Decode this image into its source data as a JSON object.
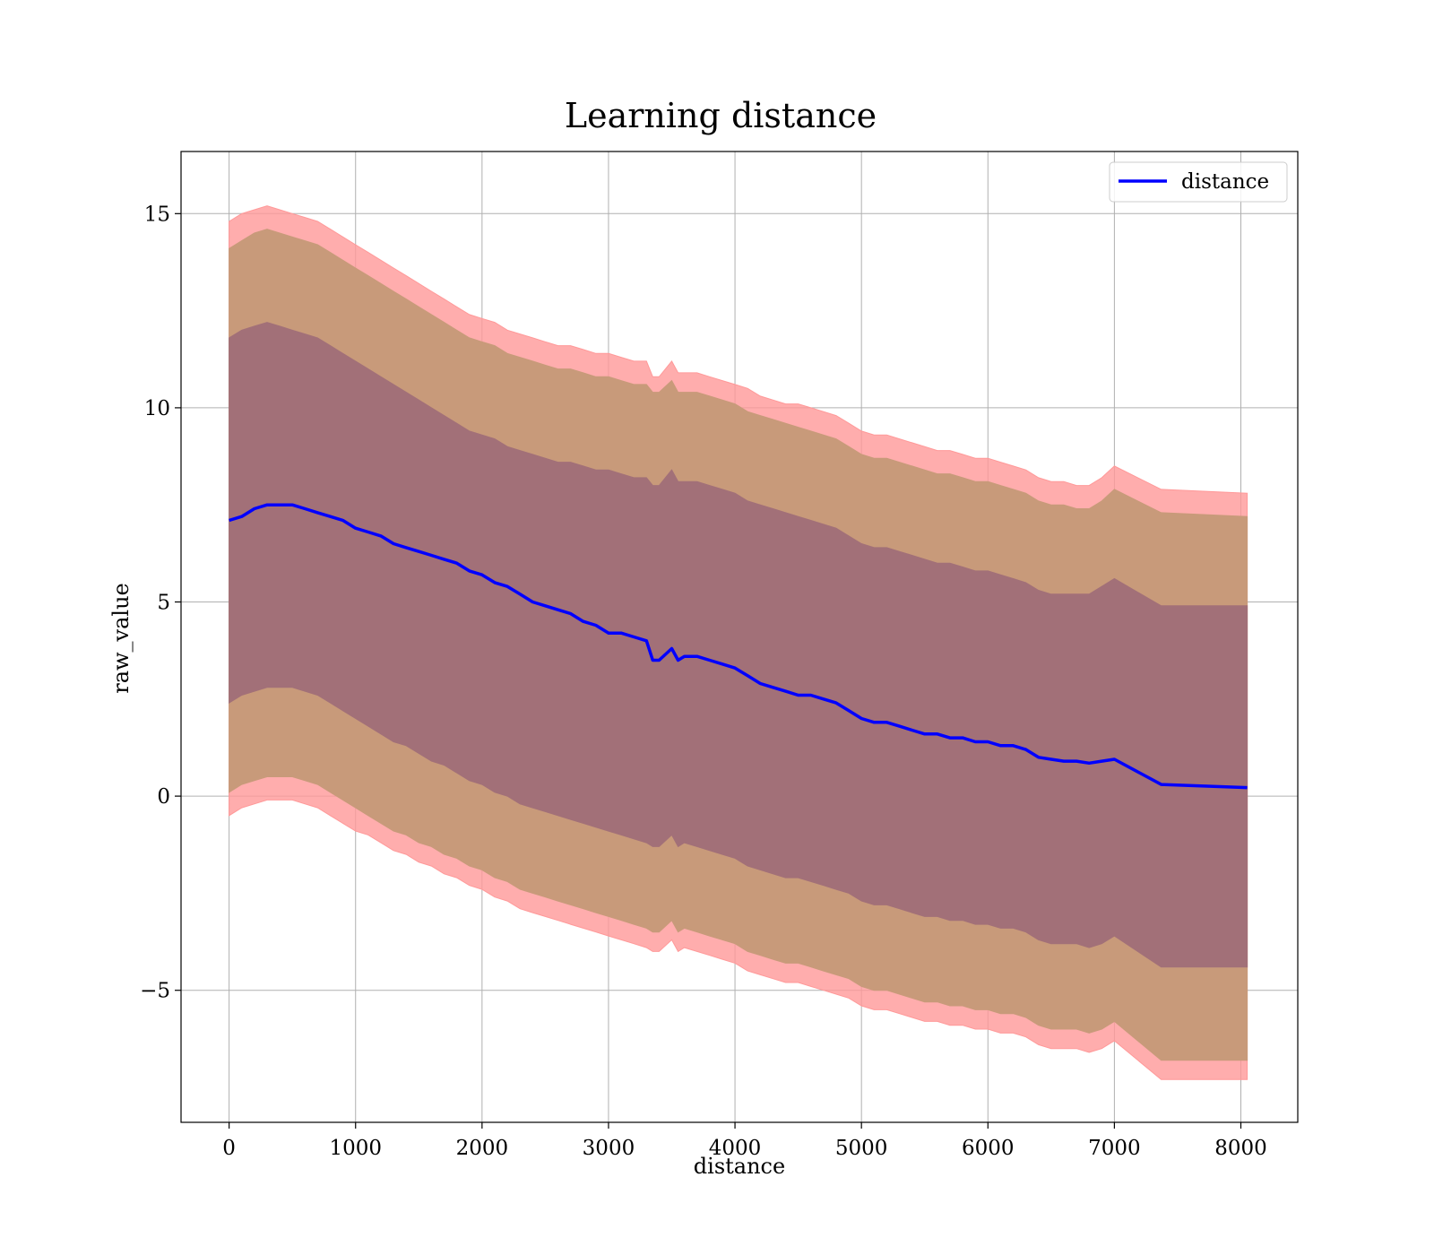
{
  "chart_data": {
    "type": "area",
    "title": "Learning distance",
    "xlabel": "distance",
    "ylabel": "raw_value",
    "xlim": [
      -380,
      8450
    ],
    "ylim": [
      -8.4,
      16.6
    ],
    "xticks": [
      0,
      1000,
      2000,
      3000,
      4000,
      5000,
      6000,
      7000,
      8000
    ],
    "xtick_labels": [
      "0",
      "1000",
      "2000",
      "3000",
      "4000",
      "5000",
      "6000",
      "7000",
      "8000"
    ],
    "yticks": [
      -5,
      0,
      5,
      10,
      15
    ],
    "ytick_labels": [
      "−5",
      "0",
      "5",
      "10",
      "15"
    ],
    "grid": true,
    "legend": {
      "position": "top-right",
      "entries": [
        "distance"
      ]
    },
    "colors": {
      "line": "#0000ff",
      "band_outer": "#ff9999",
      "band_middle": "#c89a7a",
      "band_inner": "#a27078",
      "grid": "#b0b0b0"
    },
    "x": [
      0,
      100,
      200,
      300,
      400,
      500,
      600,
      700,
      800,
      900,
      1000,
      1100,
      1200,
      1300,
      1400,
      1500,
      1600,
      1700,
      1800,
      1900,
      2000,
      2100,
      2200,
      2300,
      2400,
      2500,
      2600,
      2700,
      2800,
      2900,
      3000,
      3100,
      3200,
      3300,
      3350,
      3400,
      3500,
      3550,
      3600,
      3700,
      3800,
      3900,
      4000,
      4100,
      4200,
      4300,
      4400,
      4500,
      4600,
      4700,
      4800,
      4900,
      5000,
      5100,
      5200,
      5300,
      5400,
      5500,
      5600,
      5700,
      5800,
      5900,
      6000,
      6100,
      6200,
      6300,
      6400,
      6500,
      6600,
      6700,
      6800,
      6900,
      7000,
      7370,
      8050
    ],
    "series": [
      {
        "name": "distance",
        "values": [
          7.1,
          7.2,
          7.4,
          7.5,
          7.5,
          7.5,
          7.4,
          7.3,
          7.2,
          7.1,
          6.9,
          6.8,
          6.7,
          6.5,
          6.4,
          6.3,
          6.2,
          6.1,
          6.0,
          5.8,
          5.7,
          5.5,
          5.4,
          5.2,
          5.0,
          4.9,
          4.8,
          4.7,
          4.5,
          4.4,
          4.2,
          4.2,
          4.1,
          4.0,
          3.5,
          3.5,
          3.8,
          3.5,
          3.6,
          3.6,
          3.5,
          3.4,
          3.3,
          3.1,
          2.9,
          2.8,
          2.7,
          2.6,
          2.6,
          2.5,
          2.4,
          2.2,
          2.0,
          1.9,
          1.9,
          1.8,
          1.7,
          1.6,
          1.6,
          1.5,
          1.5,
          1.4,
          1.4,
          1.3,
          1.3,
          1.2,
          1.0,
          0.95,
          0.9,
          0.9,
          0.85,
          0.9,
          0.95,
          0.3,
          0.22
        ]
      },
      {
        "name": "",
        "band": "outer",
        "upper": [
          14.8,
          15.0,
          15.1,
          15.2,
          15.1,
          15.0,
          14.9,
          14.8,
          14.6,
          14.4,
          14.2,
          14.0,
          13.8,
          13.6,
          13.4,
          13.2,
          13.0,
          12.8,
          12.6,
          12.4,
          12.3,
          12.2,
          12.0,
          11.9,
          11.8,
          11.7,
          11.6,
          11.6,
          11.5,
          11.4,
          11.4,
          11.3,
          11.2,
          11.2,
          10.8,
          10.8,
          11.2,
          10.9,
          10.9,
          10.9,
          10.8,
          10.7,
          10.6,
          10.5,
          10.3,
          10.2,
          10.1,
          10.1,
          10.0,
          9.9,
          9.8,
          9.6,
          9.4,
          9.3,
          9.3,
          9.2,
          9.1,
          9.0,
          8.9,
          8.9,
          8.8,
          8.7,
          8.7,
          8.6,
          8.5,
          8.4,
          8.2,
          8.1,
          8.1,
          8.0,
          8.0,
          8.2,
          8.5,
          7.9,
          7.8
        ],
        "lower": [
          -0.5,
          -0.3,
          -0.2,
          -0.1,
          -0.1,
          -0.1,
          -0.2,
          -0.3,
          -0.5,
          -0.7,
          -0.9,
          -1.0,
          -1.2,
          -1.4,
          -1.5,
          -1.7,
          -1.8,
          -2.0,
          -2.1,
          -2.3,
          -2.4,
          -2.6,
          -2.7,
          -2.9,
          -3.0,
          -3.1,
          -3.2,
          -3.3,
          -3.4,
          -3.5,
          -3.6,
          -3.7,
          -3.8,
          -3.9,
          -4.0,
          -4.0,
          -3.7,
          -4.0,
          -3.9,
          -4.0,
          -4.1,
          -4.2,
          -4.3,
          -4.5,
          -4.6,
          -4.7,
          -4.8,
          -4.8,
          -4.9,
          -5.0,
          -5.1,
          -5.2,
          -5.4,
          -5.5,
          -5.5,
          -5.6,
          -5.7,
          -5.8,
          -5.8,
          -5.9,
          -5.9,
          -6.0,
          -6.0,
          -6.1,
          -6.1,
          -6.2,
          -6.4,
          -6.5,
          -6.5,
          -6.5,
          -6.6,
          -6.5,
          -6.3,
          -7.3,
          -7.3
        ]
      },
      {
        "name": "",
        "band": "middle",
        "upper": [
          14.1,
          14.3,
          14.5,
          14.6,
          14.5,
          14.4,
          14.3,
          14.2,
          14.0,
          13.8,
          13.6,
          13.4,
          13.2,
          13.0,
          12.8,
          12.6,
          12.4,
          12.2,
          12.0,
          11.8,
          11.7,
          11.6,
          11.4,
          11.3,
          11.2,
          11.1,
          11.0,
          11.0,
          10.9,
          10.8,
          10.8,
          10.7,
          10.6,
          10.6,
          10.4,
          10.4,
          10.7,
          10.4,
          10.4,
          10.4,
          10.3,
          10.2,
          10.1,
          9.9,
          9.8,
          9.7,
          9.6,
          9.5,
          9.4,
          9.3,
          9.2,
          9.0,
          8.8,
          8.7,
          8.7,
          8.6,
          8.5,
          8.4,
          8.3,
          8.3,
          8.2,
          8.1,
          8.1,
          8.0,
          7.9,
          7.8,
          7.6,
          7.5,
          7.5,
          7.4,
          7.4,
          7.6,
          7.9,
          7.3,
          7.2
        ],
        "lower": [
          0.1,
          0.3,
          0.4,
          0.5,
          0.5,
          0.5,
          0.4,
          0.3,
          0.1,
          -0.1,
          -0.3,
          -0.5,
          -0.7,
          -0.9,
          -1.0,
          -1.2,
          -1.3,
          -1.5,
          -1.6,
          -1.8,
          -1.9,
          -2.1,
          -2.2,
          -2.4,
          -2.5,
          -2.6,
          -2.7,
          -2.8,
          -2.9,
          -3.0,
          -3.1,
          -3.2,
          -3.3,
          -3.4,
          -3.5,
          -3.5,
          -3.2,
          -3.5,
          -3.4,
          -3.5,
          -3.6,
          -3.7,
          -3.8,
          -4.0,
          -4.1,
          -4.2,
          -4.3,
          -4.3,
          -4.4,
          -4.5,
          -4.6,
          -4.7,
          -4.9,
          -5.0,
          -5.0,
          -5.1,
          -5.2,
          -5.3,
          -5.3,
          -5.4,
          -5.4,
          -5.5,
          -5.5,
          -5.6,
          -5.6,
          -5.7,
          -5.9,
          -6.0,
          -6.0,
          -6.0,
          -6.1,
          -6.0,
          -5.8,
          -6.8,
          -6.8
        ]
      },
      {
        "name": "",
        "band": "inner",
        "upper": [
          11.8,
          12.0,
          12.1,
          12.2,
          12.1,
          12.0,
          11.9,
          11.8,
          11.6,
          11.4,
          11.2,
          11.0,
          10.8,
          10.6,
          10.4,
          10.2,
          10.0,
          9.8,
          9.6,
          9.4,
          9.3,
          9.2,
          9.0,
          8.9,
          8.8,
          8.7,
          8.6,
          8.6,
          8.5,
          8.4,
          8.4,
          8.3,
          8.2,
          8.2,
          8.0,
          8.0,
          8.4,
          8.1,
          8.1,
          8.1,
          8.0,
          7.9,
          7.8,
          7.6,
          7.5,
          7.4,
          7.3,
          7.2,
          7.1,
          7.0,
          6.9,
          6.7,
          6.5,
          6.4,
          6.4,
          6.3,
          6.2,
          6.1,
          6.0,
          6.0,
          5.9,
          5.8,
          5.8,
          5.7,
          5.6,
          5.5,
          5.3,
          5.2,
          5.2,
          5.2,
          5.2,
          5.4,
          5.6,
          4.9,
          4.9
        ],
        "lower": [
          2.4,
          2.6,
          2.7,
          2.8,
          2.8,
          2.8,
          2.7,
          2.6,
          2.4,
          2.2,
          2.0,
          1.8,
          1.6,
          1.4,
          1.3,
          1.1,
          0.9,
          0.8,
          0.6,
          0.4,
          0.3,
          0.1,
          0.0,
          -0.2,
          -0.3,
          -0.4,
          -0.5,
          -0.6,
          -0.7,
          -0.8,
          -0.9,
          -1.0,
          -1.1,
          -1.2,
          -1.3,
          -1.3,
          -1.0,
          -1.3,
          -1.2,
          -1.3,
          -1.4,
          -1.5,
          -1.6,
          -1.8,
          -1.9,
          -2.0,
          -2.1,
          -2.1,
          -2.2,
          -2.3,
          -2.4,
          -2.5,
          -2.7,
          -2.8,
          -2.8,
          -2.9,
          -3.0,
          -3.1,
          -3.1,
          -3.2,
          -3.2,
          -3.3,
          -3.3,
          -3.4,
          -3.4,
          -3.5,
          -3.7,
          -3.8,
          -3.8,
          -3.8,
          -3.9,
          -3.8,
          -3.6,
          -4.4,
          -4.4
        ]
      }
    ]
  }
}
